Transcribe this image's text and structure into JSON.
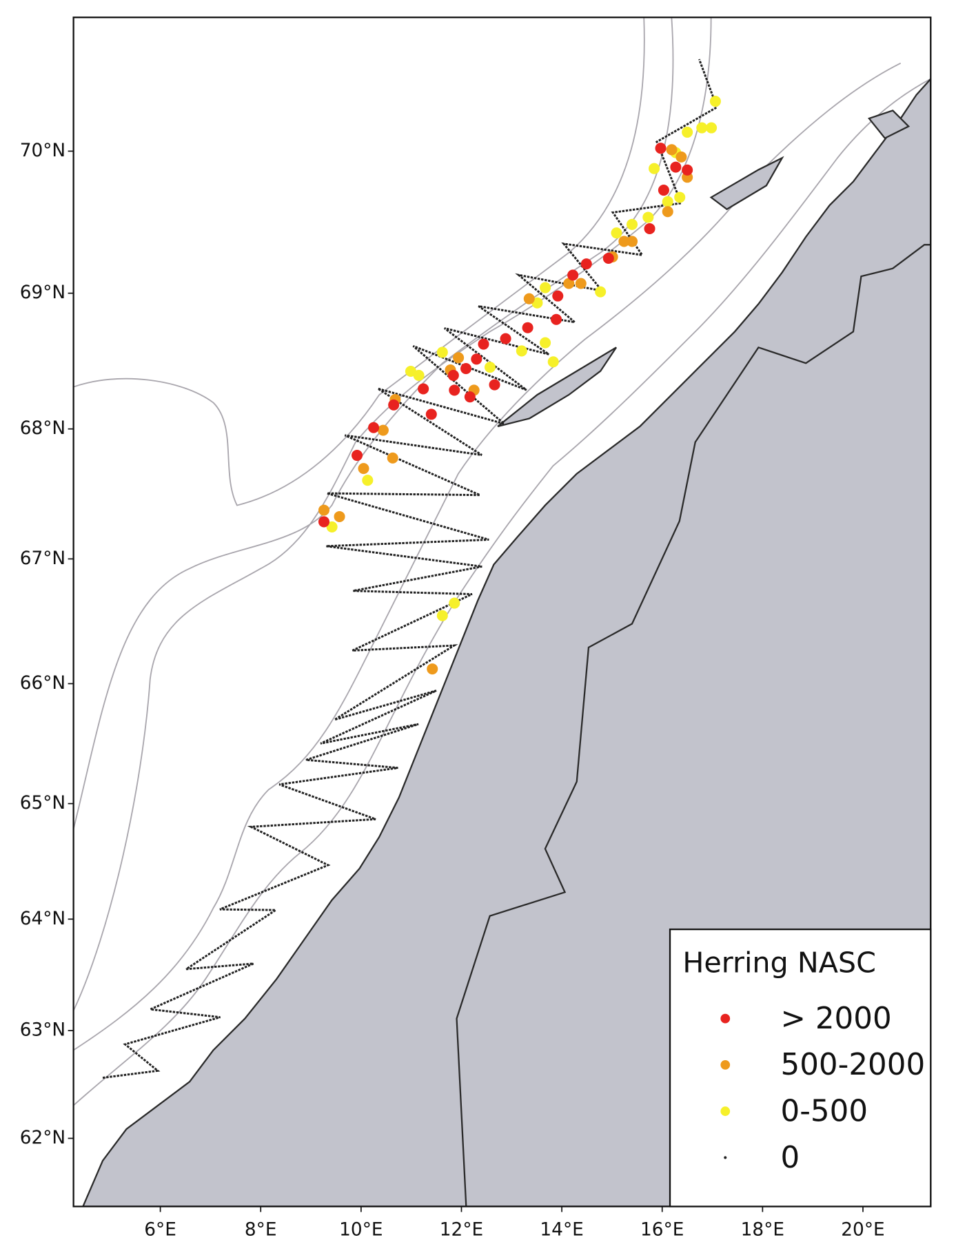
{
  "chart_data": {
    "type": "scatter",
    "projection": "mercator",
    "xlim": [
      4.27,
      21.35
    ],
    "ylim": [
      61.35,
      70.9
    ],
    "xticks": [
      {
        "value": 6,
        "label": "6°E"
      },
      {
        "value": 8,
        "label": "8°E"
      },
      {
        "value": 10,
        "label": "10°E"
      },
      {
        "value": 12,
        "label": "12°E"
      },
      {
        "value": 14,
        "label": "14°E"
      },
      {
        "value": 16,
        "label": "16°E"
      },
      {
        "value": 18,
        "label": "18°E"
      },
      {
        "value": 20,
        "label": "20°E"
      }
    ],
    "yticks": [
      {
        "value": 62,
        "label": "62°N"
      },
      {
        "value": 63,
        "label": "63°N"
      },
      {
        "value": 64,
        "label": "64°N"
      },
      {
        "value": 65,
        "label": "65°N"
      },
      {
        "value": 66,
        "label": "66°N"
      },
      {
        "value": 67,
        "label": "67°N"
      },
      {
        "value": 68,
        "label": "68°N"
      },
      {
        "value": 69,
        "label": "69°N"
      },
      {
        "value": 70,
        "label": "70°N"
      }
    ],
    "legend_title": "Herring NASC",
    "legend": "lower right",
    "series": [
      {
        "name": "> 2000",
        "color": "#e8231f",
        "x": [
          15.97,
          16.27,
          16.5,
          16.03,
          15.75,
          14.93,
          14.49,
          14.22,
          13.92,
          13.89,
          13.32,
          12.88,
          12.44,
          12.3,
          12.09,
          11.84,
          11.86,
          12.17,
          12.66,
          11.24,
          10.65,
          11.4,
          10.25,
          9.92,
          9.26
        ],
        "y": [
          70.02,
          69.89,
          69.87,
          69.73,
          69.46,
          69.25,
          69.21,
          69.13,
          68.98,
          68.81,
          68.75,
          68.67,
          68.63,
          68.52,
          68.45,
          68.4,
          68.29,
          68.24,
          68.33,
          68.3,
          68.18,
          68.11,
          68.01,
          67.8,
          67.29
        ]
      },
      {
        "name": "500-2000",
        "color": "#ee9a1c",
        "x": [
          16.19,
          16.38,
          16.5,
          16.11,
          15.4,
          15.24,
          15.01,
          14.38,
          13.35,
          14.14,
          11.94,
          11.78,
          12.25,
          10.68,
          10.44,
          10.05,
          10.63,
          9.57,
          9.26,
          11.42
        ],
        "y": [
          70.01,
          69.96,
          69.82,
          69.58,
          69.37,
          69.37,
          69.26,
          69.07,
          68.96,
          69.07,
          68.53,
          68.44,
          68.29,
          68.22,
          67.99,
          67.7,
          67.78,
          67.33,
          67.38,
          66.12
        ]
      },
      {
        "name": "0-500",
        "color": "#f6f02a",
        "x": [
          16.5,
          16.79,
          16.98,
          17.06,
          16.27,
          15.84,
          16.11,
          16.35,
          15.72,
          15.4,
          15.09,
          13.67,
          13.51,
          13.67,
          13.83,
          13.2,
          12.57,
          11.62,
          11.15,
          10.99,
          10.13,
          9.42,
          11.86,
          11.62,
          14.77
        ],
        "y": [
          70.13,
          70.16,
          70.16,
          70.34,
          69.99,
          69.88,
          69.65,
          69.68,
          69.54,
          69.49,
          69.43,
          69.04,
          68.93,
          68.64,
          68.5,
          68.58,
          68.46,
          68.57,
          68.4,
          68.43,
          67.61,
          67.25,
          66.65,
          66.55,
          69.01
        ]
      },
      {
        "name": "0",
        "color": "#222222"
      }
    ]
  }
}
